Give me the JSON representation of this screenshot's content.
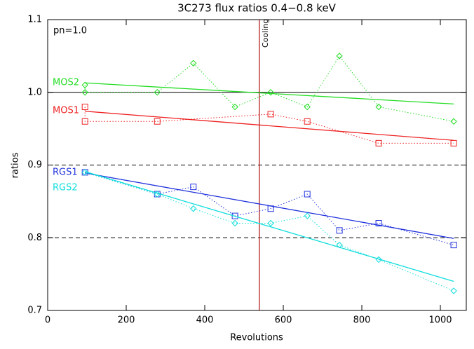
{
  "chart_data": {
    "type": "line",
    "title": "3C273 flux ratios 0.4−0.8 keV",
    "xlabel": "Revolutions",
    "ylabel": "ratios",
    "annotation": "pn=1.0",
    "xlim": [
      0,
      1066
    ],
    "ylim": [
      0.7,
      1.1
    ],
    "xticks": [
      0,
      200,
      400,
      600,
      800,
      1000
    ],
    "yticks": [
      0.7,
      0.8,
      0.9,
      {
        "value": 1,
        "label": "1.0"
      },
      1.1
    ],
    "hlines": [
      {
        "value": 1,
        "style": "solid"
      },
      {
        "value": 0.9,
        "style": "dashed"
      },
      {
        "value": 0.8,
        "style": "dashed"
      }
    ],
    "vline": {
      "value": 539,
      "label": "Cooling",
      "color": "#b22222"
    },
    "series": [
      {
        "name": "MOS2",
        "color": "#22dd22",
        "marker": "diamond",
        "x": [
          95,
          95,
          279,
          371,
          477,
          568,
          661,
          743,
          843,
          1034
        ],
        "values": [
          1.01,
          1.0,
          1.0,
          1.04,
          0.98,
          1.0,
          0.98,
          1.05,
          0.98,
          0.96
        ],
        "fit": {
          "x": [
            95,
            1034
          ],
          "values": [
            1.013,
            0.984
          ]
        }
      },
      {
        "name": "MOS1",
        "color": "#ee2222",
        "marker": "square",
        "x": [
          95,
          95,
          279,
          568,
          661,
          843,
          1034
        ],
        "values": [
          0.98,
          0.96,
          0.96,
          0.97,
          0.96,
          0.93,
          0.93
        ],
        "fit": {
          "x": [
            95,
            1034
          ],
          "values": [
            0.974,
            0.934
          ]
        }
      },
      {
        "name": "RGS1",
        "color": "#2233dd",
        "marker": "square",
        "x": [
          95,
          279,
          371,
          477,
          568,
          661,
          743,
          843,
          1034
        ],
        "values": [
          0.89,
          0.86,
          0.87,
          0.83,
          0.84,
          0.86,
          0.81,
          0.82,
          0.79
        ],
        "fit": {
          "x": [
            95,
            1034
          ],
          "values": [
            0.889,
            0.799
          ]
        }
      },
      {
        "name": "RGS2",
        "color": "#11dddd",
        "marker": "diamond",
        "x": [
          95,
          279,
          371,
          477,
          568,
          661,
          743,
          843,
          1034
        ],
        "values": [
          0.89,
          0.86,
          0.84,
          0.82,
          0.82,
          0.83,
          0.79,
          0.77,
          0.727
        ],
        "fit": {
          "x": [
            95,
            1034
          ],
          "values": [
            0.891,
            0.74
          ]
        }
      }
    ]
  }
}
